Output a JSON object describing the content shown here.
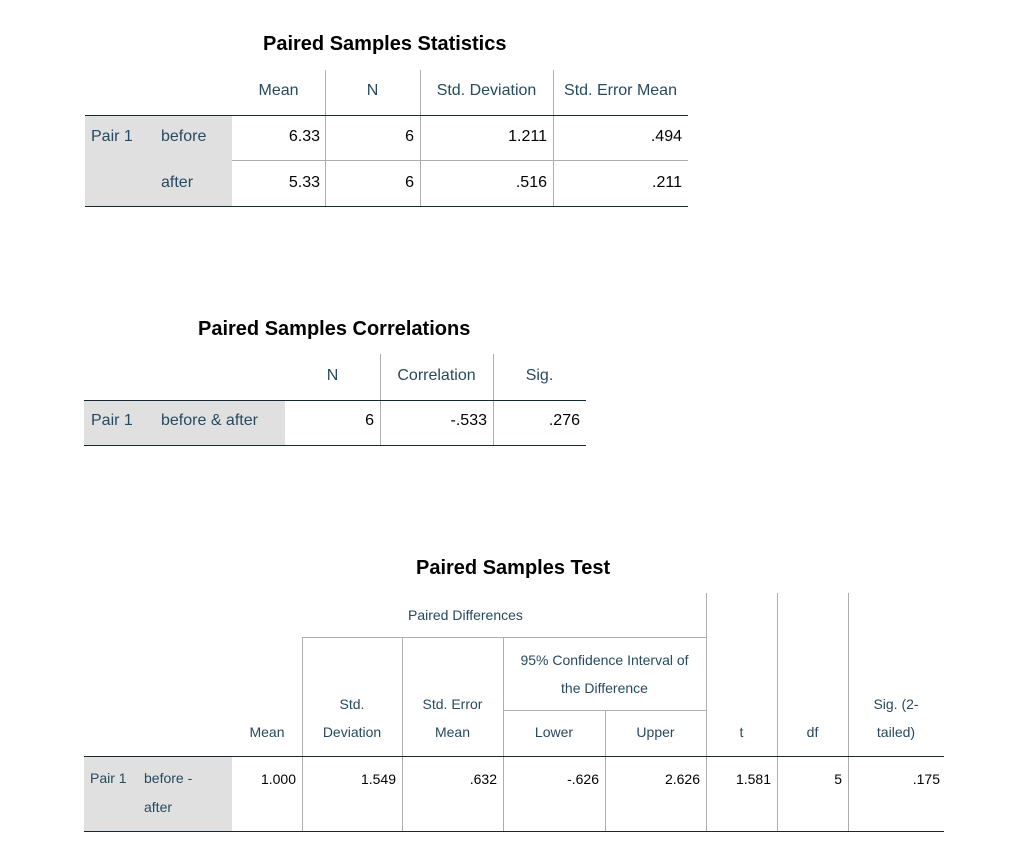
{
  "stats": {
    "title": "Paired Samples Statistics",
    "columns": [
      "Mean",
      "N",
      "Std. Deviation",
      "Std. Error Mean"
    ],
    "pair_label": "Pair 1",
    "rows": [
      {
        "label": "before",
        "mean": "6.33",
        "n": "6",
        "sd": "1.211",
        "se": ".494"
      },
      {
        "label": "after",
        "mean": "5.33",
        "n": "6",
        "sd": ".516",
        "se": ".211"
      }
    ]
  },
  "corr": {
    "title": "Paired Samples Correlations",
    "columns": [
      "N",
      "Correlation",
      "Sig."
    ],
    "pair_label": "Pair 1",
    "row": {
      "label": "before & after",
      "n": "6",
      "correlation": "-.533",
      "sig": ".276"
    }
  },
  "test": {
    "title": "Paired Samples Test",
    "group_header": "Paired Differences",
    "ci_header_line1": "95% Confidence Interval of",
    "ci_header_line2": "the Difference",
    "col_mean": "Mean",
    "col_sd_1": "Std.",
    "col_sd_2": "Deviation",
    "col_se_1": "Std. Error",
    "col_se_2": "Mean",
    "col_lower": "Lower",
    "col_upper": "Upper",
    "col_t": "t",
    "col_df": "df",
    "col_sig_1": "Sig. (2-",
    "col_sig_2": "tailed)",
    "pair_label": "Pair 1",
    "row_label_1": "before -",
    "row_label_2": "after",
    "row": {
      "mean": "1.000",
      "sd": "1.549",
      "se": ".632",
      "lower": "-.626",
      "upper": "2.626",
      "t": "1.581",
      "df": "5",
      "sig": ".175"
    }
  }
}
